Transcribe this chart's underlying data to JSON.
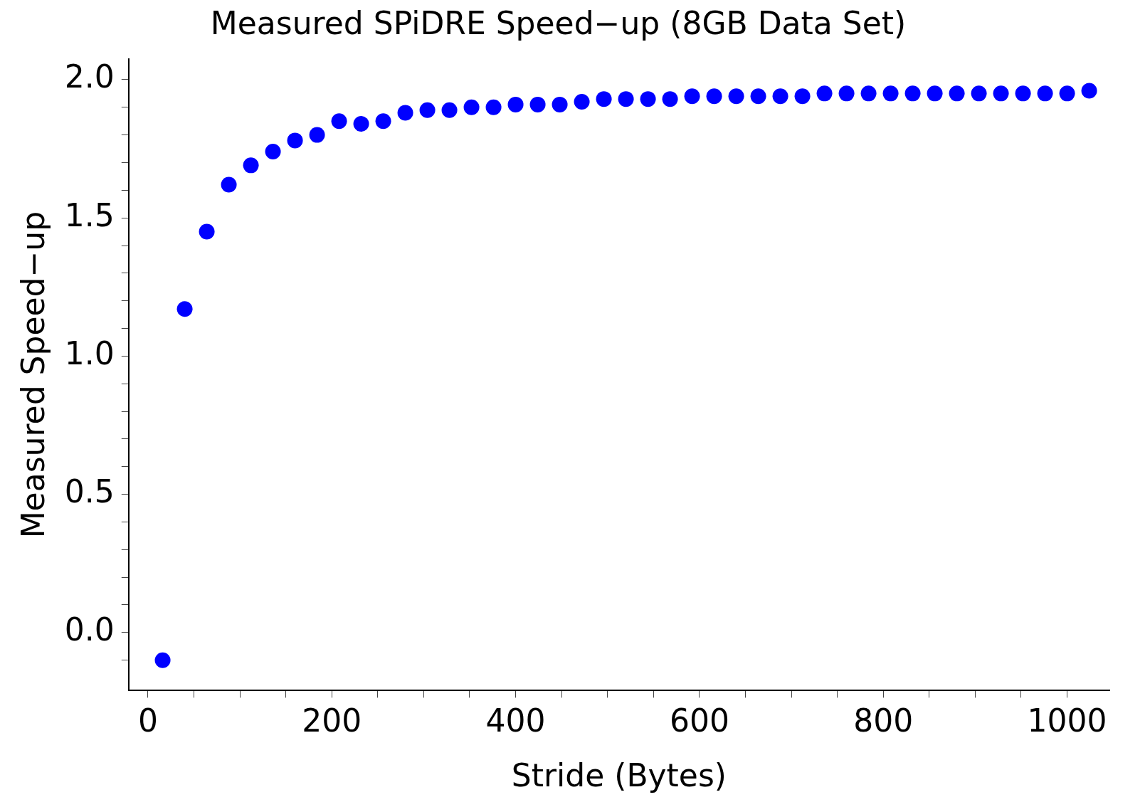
{
  "chart_data": {
    "type": "scatter",
    "title": "Measured SPiDRE Speed−up (8GB Data Set)",
    "xlabel": "Stride (Bytes)",
    "ylabel": "Measured Speed−up",
    "x": [
      16,
      40,
      64,
      88,
      112,
      136,
      160,
      184,
      208,
      232,
      256,
      280,
      304,
      328,
      352,
      376,
      400,
      424,
      448,
      472,
      496,
      520,
      544,
      568,
      592,
      616,
      640,
      664,
      688,
      712,
      736,
      760,
      784,
      808,
      832,
      856,
      880,
      904,
      928,
      952,
      976,
      1000,
      1024
    ],
    "series": [
      {
        "color": "#0000ff",
        "values": [
          -0.1,
          1.17,
          1.45,
          1.62,
          1.69,
          1.74,
          1.78,
          1.8,
          1.85,
          1.84,
          1.85,
          1.88,
          1.89,
          1.89,
          1.9,
          1.9,
          1.91,
          1.91,
          1.91,
          1.92,
          1.93,
          1.93,
          1.93,
          1.93,
          1.94,
          1.94,
          1.94,
          1.94,
          1.94,
          1.94,
          1.95,
          1.95,
          1.95,
          1.95,
          1.95,
          1.95,
          1.95,
          1.95,
          1.95,
          1.95,
          1.95,
          1.95,
          1.96
        ]
      }
    ],
    "xlim": [
      -21,
      1046
    ],
    "ylim": [
      -0.21,
      2.075
    ],
    "xticks": [
      0,
      {
        "value": 50,
        "label": null
      },
      {
        "value": 100,
        "label": null
      },
      {
        "value": 150,
        "label": null
      },
      200,
      {
        "value": 250,
        "label": null
      },
      {
        "value": 300,
        "label": null
      },
      {
        "value": 350,
        "label": null
      },
      400,
      {
        "value": 450,
        "label": null
      },
      {
        "value": 500,
        "label": null
      },
      {
        "value": 550,
        "label": null
      },
      600,
      {
        "value": 650,
        "label": null
      },
      {
        "value": 700,
        "label": null
      },
      {
        "value": 750,
        "label": null
      },
      800,
      {
        "value": 850,
        "label": null
      },
      {
        "value": 900,
        "label": null
      },
      {
        "value": 950,
        "label": null
      },
      1000
    ],
    "yticks": [
      {
        "value": -0.1,
        "label": null
      },
      {
        "value": 0,
        "label": "0.0"
      },
      {
        "value": 0.1,
        "label": null
      },
      {
        "value": 0.2,
        "label": null
      },
      {
        "value": 0.3,
        "label": null
      },
      {
        "value": 0.4,
        "label": null
      },
      0.5,
      {
        "value": 0.6,
        "label": null
      },
      {
        "value": 0.7,
        "label": null
      },
      {
        "value": 0.8,
        "label": null
      },
      {
        "value": 0.9,
        "label": null
      },
      {
        "value": 1,
        "label": "1.0"
      },
      {
        "value": 1.1,
        "label": null
      },
      {
        "value": 1.2,
        "label": null
      },
      {
        "value": 1.3,
        "label": null
      },
      {
        "value": 1.4,
        "label": null
      },
      1.5,
      {
        "value": 1.6,
        "label": null
      },
      {
        "value": 1.7,
        "label": null
      },
      {
        "value": 1.8,
        "label": null
      },
      {
        "value": 1.9,
        "label": null
      },
      {
        "value": 2,
        "label": "2.0"
      }
    ],
    "grid": false,
    "legend": false,
    "marker": "circle"
  }
}
